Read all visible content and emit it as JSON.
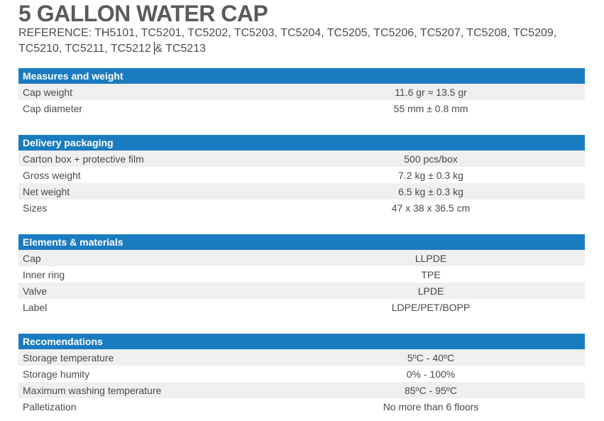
{
  "title": "5 GALLON WATER CAP",
  "reference": {
    "label": "REFERENCE:",
    "codes": "TH5101, TC5201, TC5202, TC5203, TC5204, TC5205, TC5206, TC5207, TC5208, TC5209, TC5210, TC5211, TC5212",
    "tail": "& TC5213"
  },
  "sections": [
    {
      "header": "Measures and weight",
      "rows": [
        {
          "label": "Cap weight",
          "value": "11.6 gr ≈ 13.5 gr"
        },
        {
          "label": "Cap diameter",
          "value": "55 mm ± 0.8 mm"
        }
      ]
    },
    {
      "header": "Delivery packaging",
      "rows": [
        {
          "label": "Carton box + protective film",
          "value": "500 pcs/box"
        },
        {
          "label": "Gross weight",
          "value": "7.2 kg ± 0.3 kg"
        },
        {
          "label": "Net weight",
          "value": "6.5 kg ± 0.3 kg"
        },
        {
          "label": "Sizes",
          "value": "47 x 38 x 36.5 cm"
        }
      ]
    },
    {
      "header": "Elements & materials",
      "rows": [
        {
          "label": "Cap",
          "value": "LLPDE"
        },
        {
          "label": "Inner ring",
          "value": "TPE"
        },
        {
          "label": "Valve",
          "value": "LPDE"
        },
        {
          "label": "Label",
          "value": "LDPE/PET/BOPP"
        }
      ]
    },
    {
      "header": "Recomendations",
      "rows": [
        {
          "label": "Storage temperature",
          "value": "5ºC - 40ºC"
        },
        {
          "label": "Storage humity",
          "value": "0% - 100%"
        },
        {
          "label": "Maximum washing temperature",
          "value": "85ºC - 95ºC"
        },
        {
          "label": "Palletization",
          "value": "No more than 6 floors"
        }
      ]
    }
  ],
  "colors": {
    "header_bg": "#1a7cc0",
    "row_alt_bg": "#efefef"
  }
}
